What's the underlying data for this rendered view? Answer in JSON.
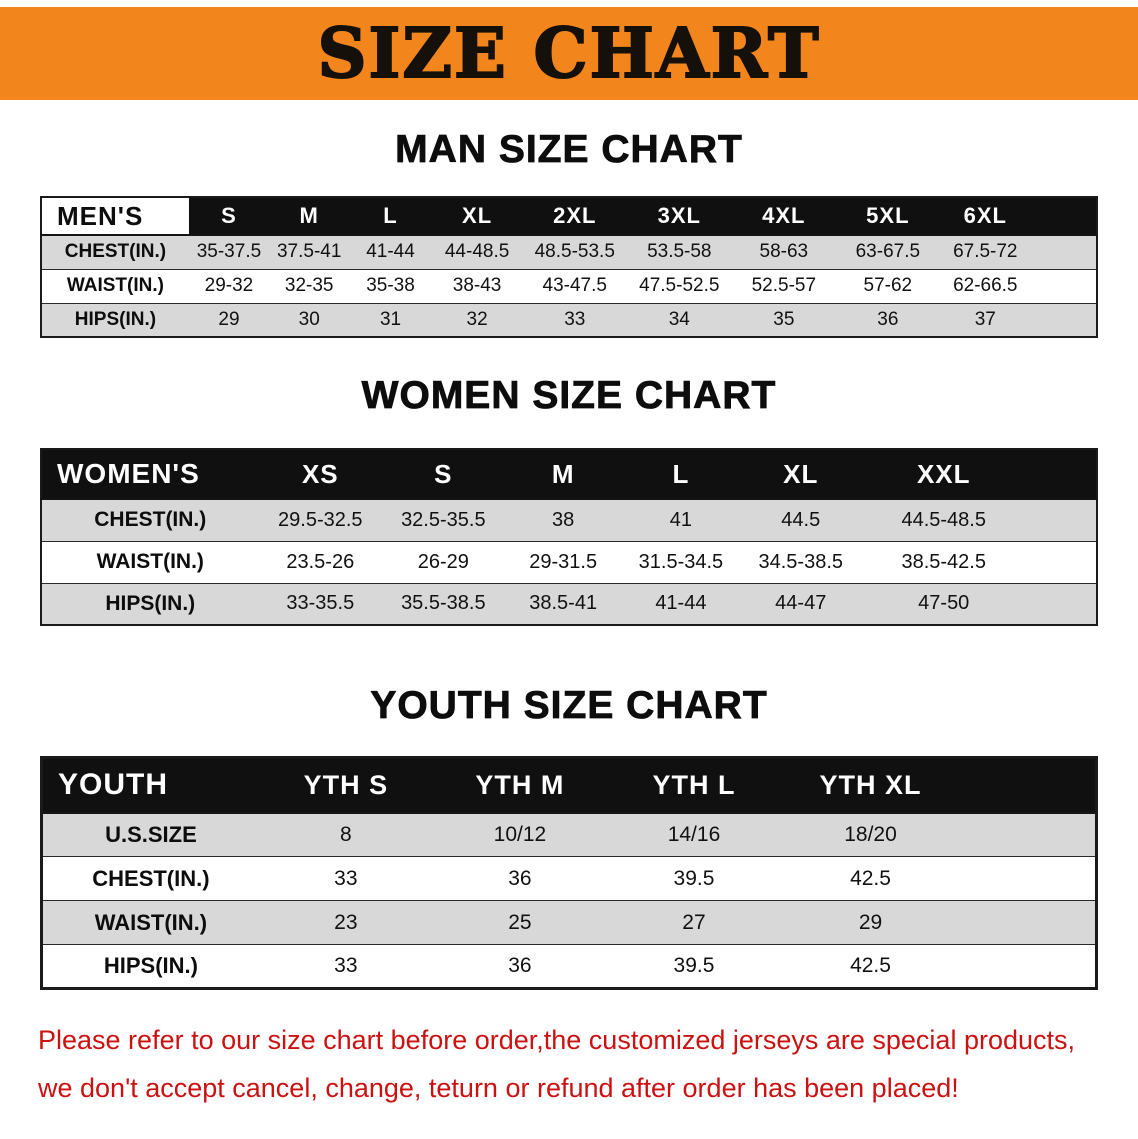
{
  "banner": {
    "title": "SIZE CHART"
  },
  "colors": {
    "banner_bg": "#f3851d",
    "header_bg": "#101010",
    "row_alt": "#d8d8d8",
    "disclaimer_red": "#cc1111"
  },
  "sections": [
    {
      "heading": "MAN SIZE CHART",
      "table": {
        "header": [
          "MEN'S",
          "S",
          "M",
          "L",
          "XL",
          "2XL",
          "3XL",
          "4XL",
          "5XL",
          "6XL"
        ],
        "rows": [
          {
            "label": "CHEST(IN.)",
            "values": [
              "35-37.5",
              "37.5-41",
              "41-44",
              "44-48.5",
              "48.5-53.5",
              "53.5-58",
              "58-63",
              "63-67.5",
              "67.5-72"
            ]
          },
          {
            "label": "WAIST(IN.)",
            "values": [
              "29-32",
              "32-35",
              "35-38",
              "38-43",
              "43-47.5",
              "47.5-52.5",
              "52.5-57",
              "57-62",
              "62-66.5"
            ]
          },
          {
            "label": "HIPS(IN.)",
            "values": [
              "29",
              "30",
              "31",
              "32",
              "33",
              "34",
              "35",
              "36",
              "37"
            ]
          }
        ]
      }
    },
    {
      "heading": "WOMEN SIZE CHART",
      "table": {
        "header": [
          "WOMEN'S",
          "XS",
          "S",
          "M",
          "L",
          "XL",
          "XXL"
        ],
        "rows": [
          {
            "label": "CHEST(IN.)",
            "values": [
              "29.5-32.5",
              "32.5-35.5",
              "38",
              "41",
              "44.5",
              "44.5-48.5"
            ]
          },
          {
            "label": "WAIST(IN.)",
            "values": [
              "23.5-26",
              "26-29",
              "29-31.5",
              "31.5-34.5",
              "34.5-38.5",
              "38.5-42.5"
            ]
          },
          {
            "label": "HIPS(IN.)",
            "values": [
              "33-35.5",
              "35.5-38.5",
              "38.5-41",
              "41-44",
              "44-47",
              "47-50"
            ]
          }
        ]
      }
    },
    {
      "heading": "YOUTH SIZE CHART",
      "table": {
        "header": [
          "YOUTH",
          "YTH S",
          "YTH M",
          "YTH L",
          "YTH XL"
        ],
        "rows": [
          {
            "label": "U.S.SIZE",
            "values": [
              "8",
              "10/12",
              "14/16",
              "18/20"
            ]
          },
          {
            "label": "CHEST(IN.)",
            "values": [
              "33",
              "36",
              "39.5",
              "42.5"
            ]
          },
          {
            "label": "WAIST(IN.)",
            "values": [
              "23",
              "25",
              "27",
              "29"
            ]
          },
          {
            "label": "HIPS(IN.)",
            "values": [
              "33",
              "36",
              "39.5",
              "42.5"
            ]
          }
        ]
      }
    }
  ],
  "disclaimer": {
    "line1": "Please refer to our size chart before order,the customized jerseys are special products,",
    "line2": "we don't accept cancel, change, teturn or refund after order has been placed!"
  }
}
